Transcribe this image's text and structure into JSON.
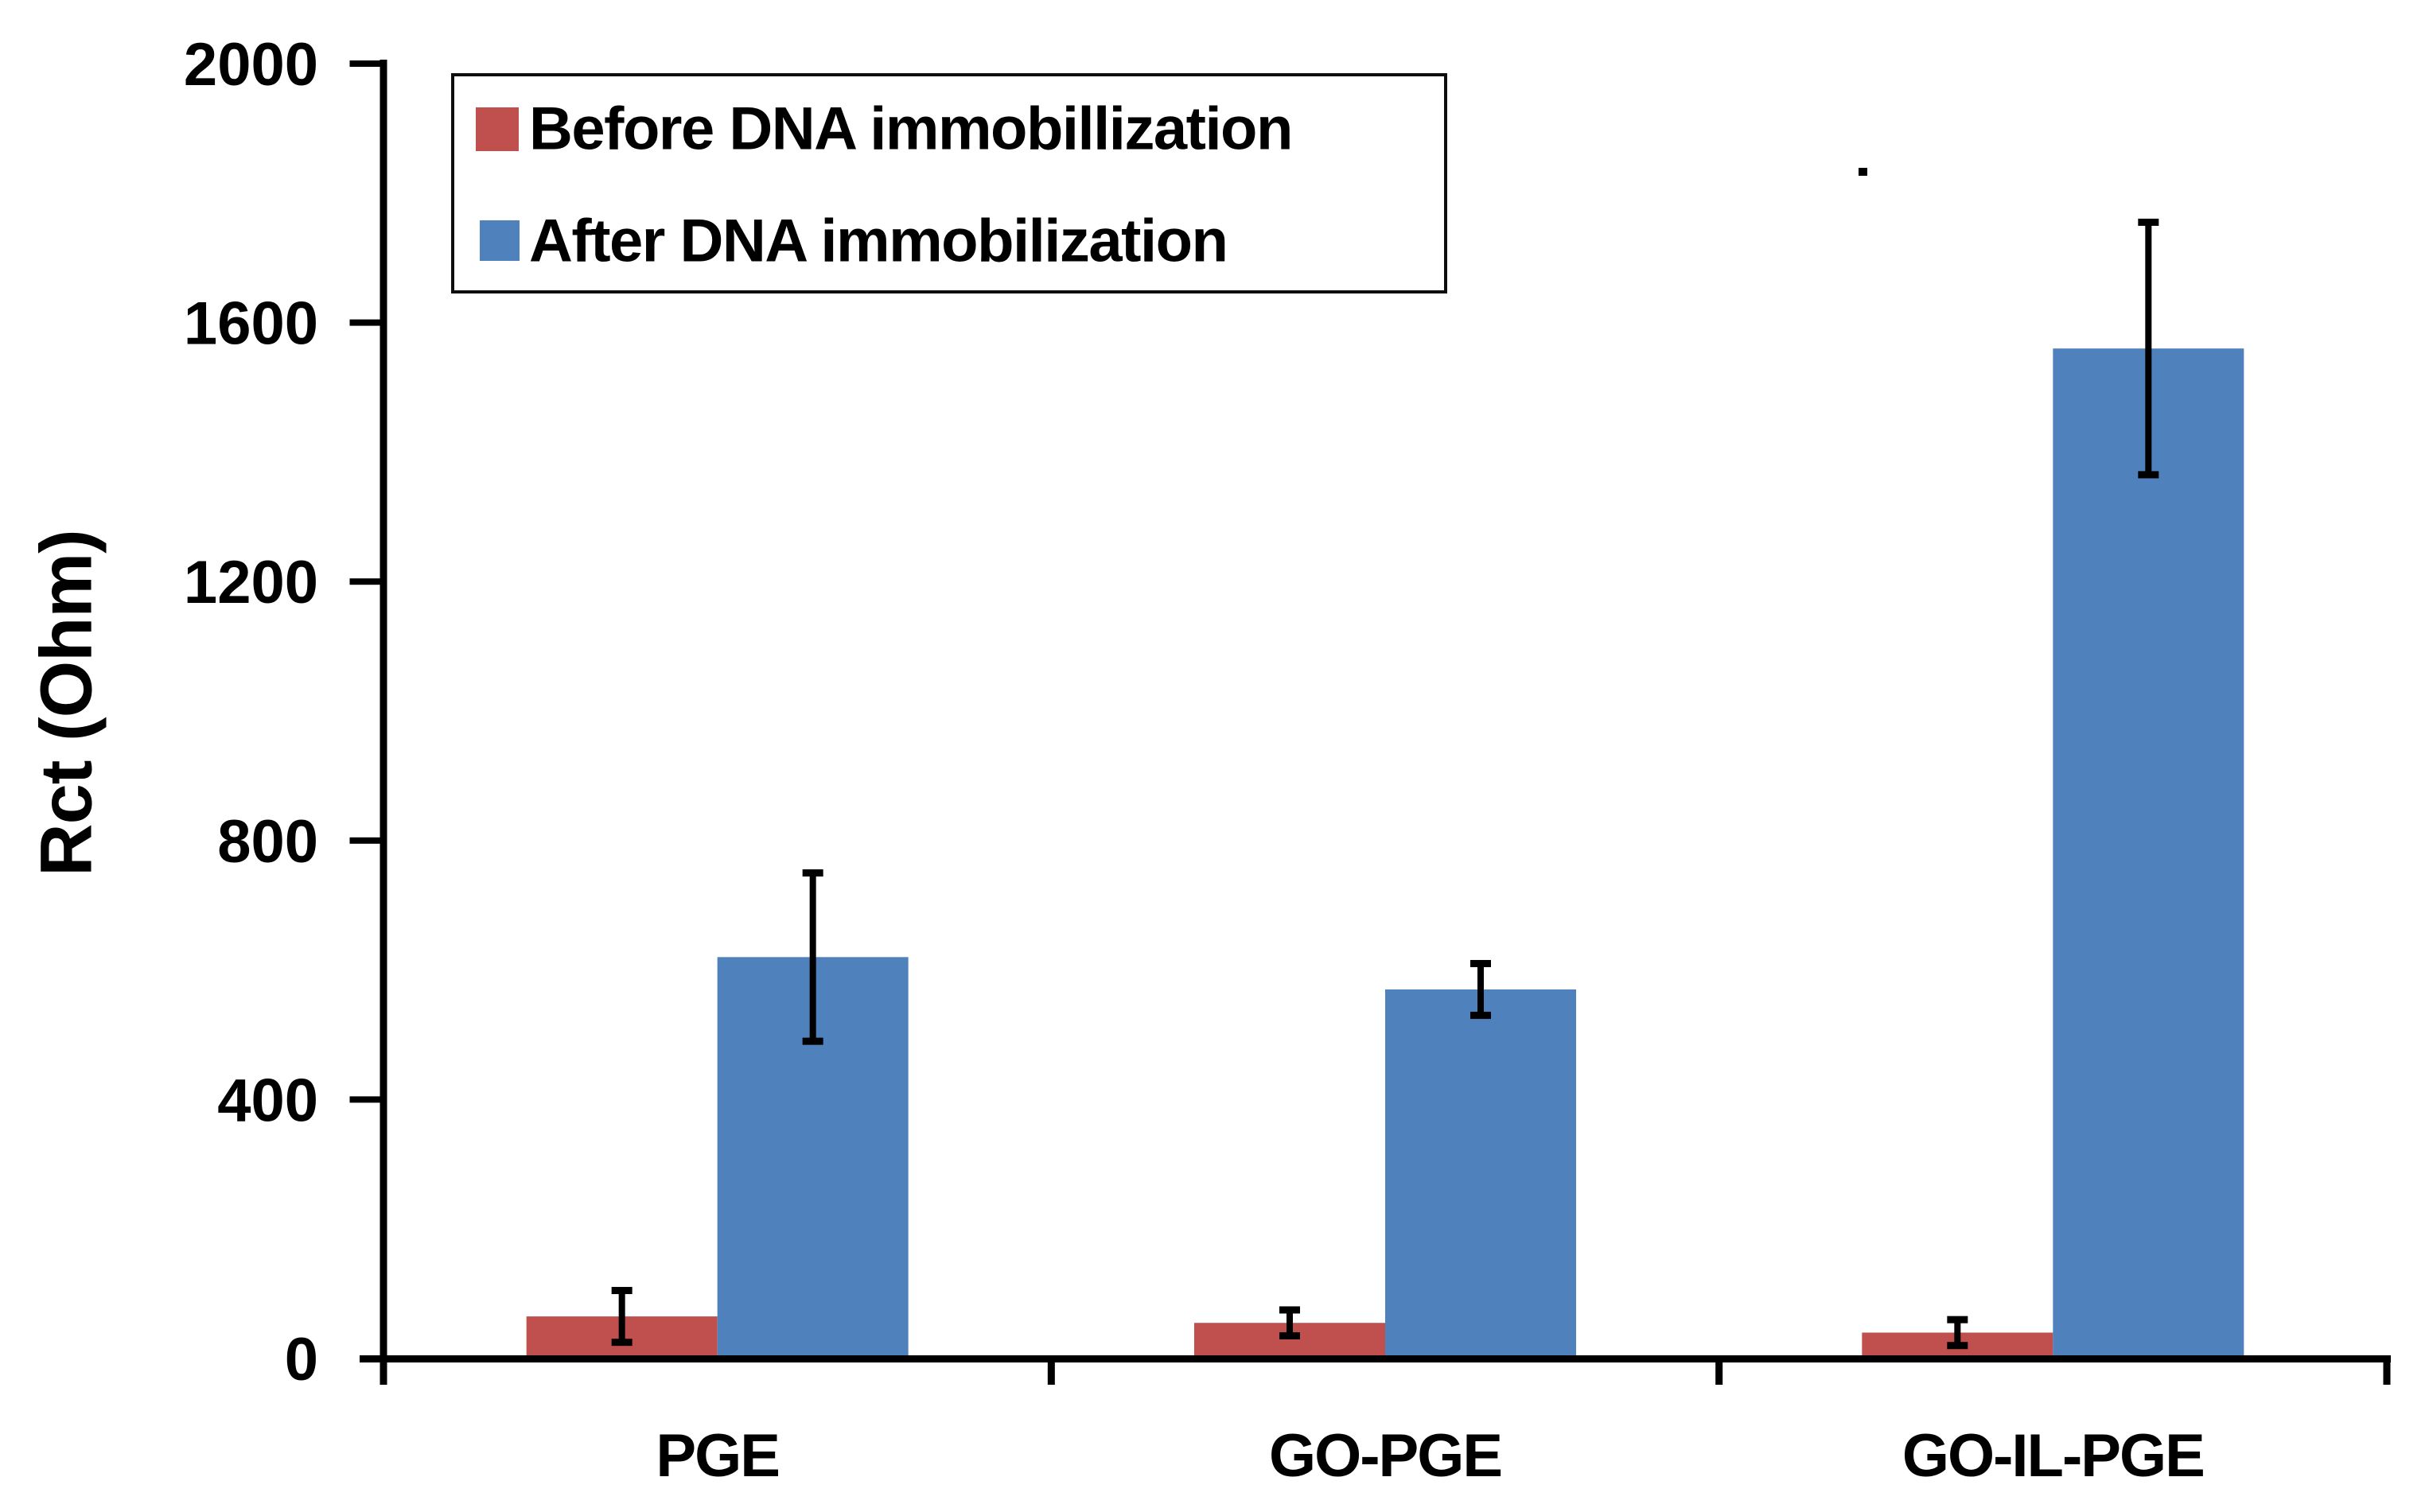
{
  "background": "#ffffff",
  "axis_color": "#000000",
  "chart_data": {
    "type": "bar",
    "title": "",
    "xlabel": "",
    "ylabel": "Rct (Ohm)",
    "categories": [
      "PGE",
      "GO-PGE",
      "GO-IL-PGE"
    ],
    "series": [
      {
        "name": "Before DNA immobillization",
        "color": "#C0504D",
        "values": [
          65,
          55,
          40
        ],
        "errors": [
          40,
          20,
          20
        ]
      },
      {
        "name": "After DNA immobilization",
        "color": "#4F81BD",
        "values": [
          620,
          570,
          1560
        ],
        "errors": [
          130,
          40,
          195
        ]
      }
    ],
    "ylim": [
      0,
      2000
    ],
    "yticks": [
      0,
      400,
      800,
      1200,
      1600,
      2000
    ],
    "grid": false,
    "legend_position": "top-left",
    "error_bars": true,
    "artifact_dot": "small stray black dot above GO-IL-PGE group"
  }
}
